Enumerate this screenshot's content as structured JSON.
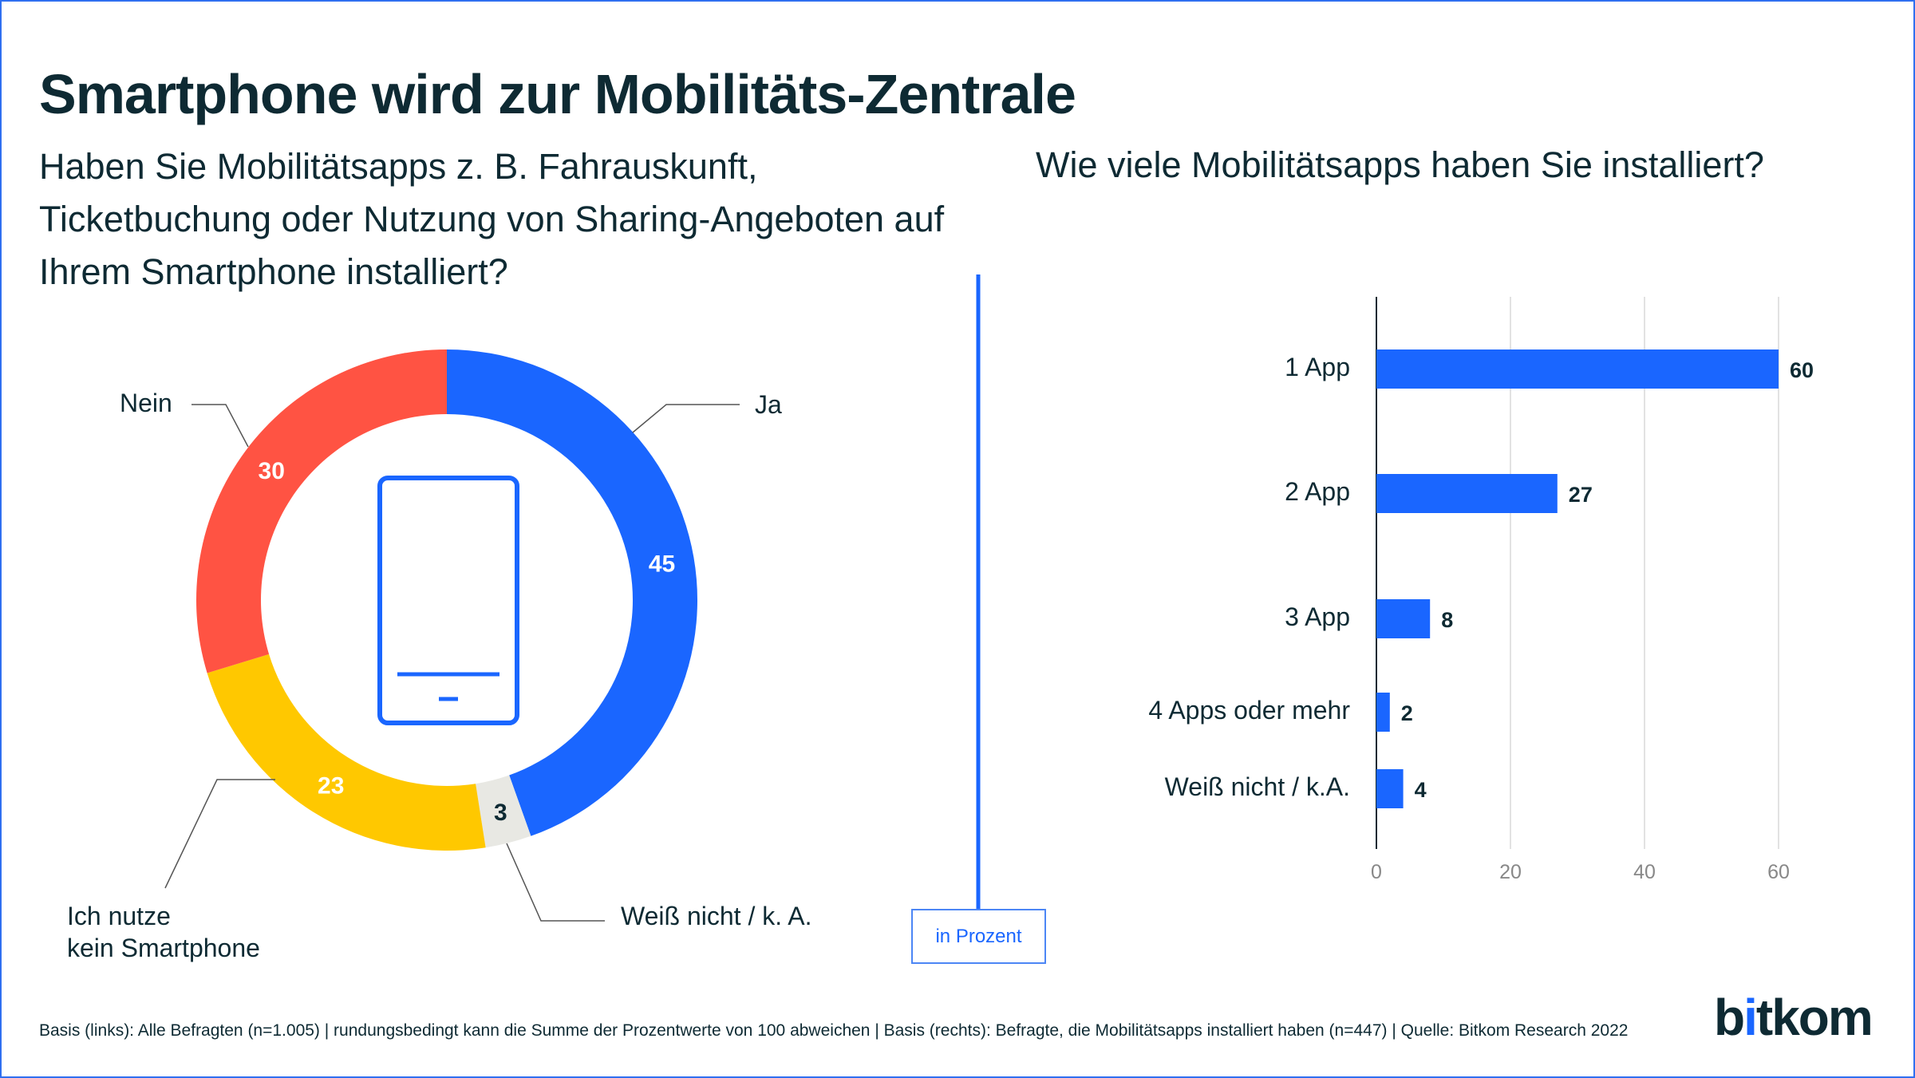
{
  "title": "Smartphone wird zur Mobilitäts-Zentrale",
  "footer": "Basis (links): Alle Befragten (n=1.005) | rundungsbedingt kann die Summe der Prozentwerte von 100 abweichen | Basis (rechts): Befragte, die Mobilitätsapps installiert haben (n=447) | Quelle: Bitkom Research 2022",
  "logo": "bitkom",
  "unit_label": "in Prozent",
  "colors": {
    "blue": "#1a66ff",
    "red": "#ff5343",
    "yellow": "#ffc800",
    "gray": "#e8e8e3",
    "text": "#0e2a33"
  },
  "chart_data": [
    {
      "type": "pie",
      "subtype": "donut",
      "title": "Haben Sie Mobilitätsapps z. B. Fahrauskunft, Ticketbuchung oder Nutzung von Sharing-Angeboten auf Ihrem Smartphone installiert?",
      "center_icon": "smartphone-icon",
      "slices": [
        {
          "label": "Ja",
          "value": 45,
          "color": "#1a66ff",
          "label_color": "#ffffff"
        },
        {
          "label": "Weiß nicht / k. A.",
          "value": 3,
          "color": "#e8e8e3",
          "label_color": "#0e2a33"
        },
        {
          "label": "Ich nutze kein Smartphone",
          "label_lines": [
            "Ich nutze",
            "kein Smartphone"
          ],
          "value": 23,
          "color": "#ffc800",
          "label_color": "#ffffff"
        },
        {
          "label": "Nein",
          "value": 30,
          "color": "#ff5343",
          "label_color": "#ffffff"
        }
      ]
    },
    {
      "type": "bar",
      "orientation": "horizontal",
      "title": "Wie viele Mobilitätsapps haben Sie installiert?",
      "categories": [
        "1 App",
        "2 App",
        "3 App",
        "4 Apps oder mehr",
        "Weiß nicht / k.A."
      ],
      "values": [
        60,
        27,
        8,
        2,
        4
      ],
      "color": "#1a66ff",
      "xlim": [
        0,
        60
      ],
      "xticks": [
        0,
        20,
        40,
        60
      ],
      "grid": true
    }
  ]
}
